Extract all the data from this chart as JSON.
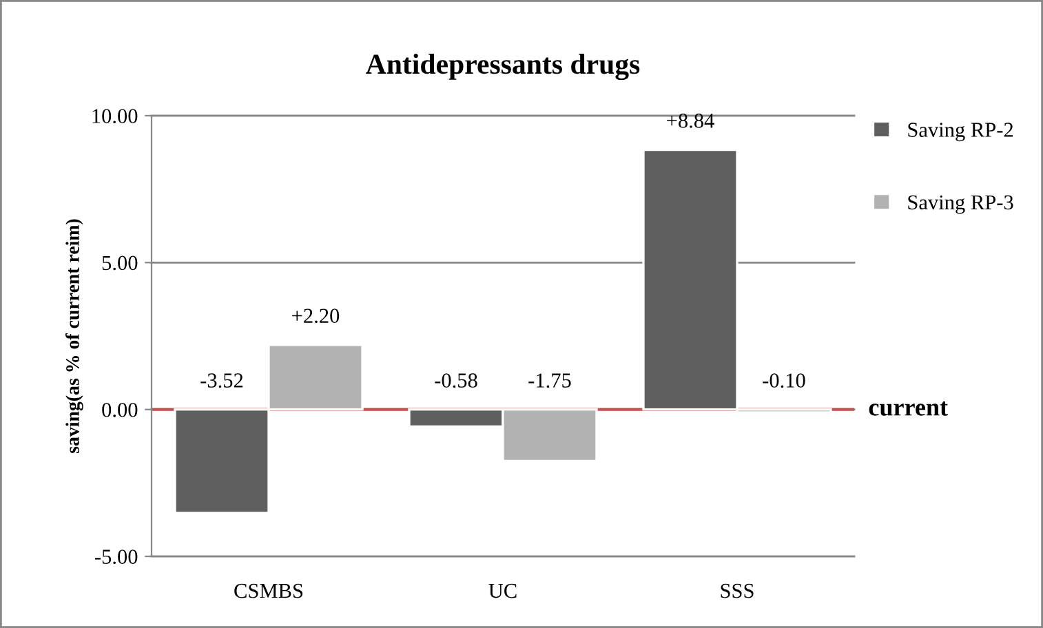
{
  "chart_data": {
    "type": "bar",
    "title": "Antidepressants drugs",
    "ylabel": "saving(as % of current reim)",
    "categories": [
      "CSMBS",
      "UC",
      "SSS"
    ],
    "series": [
      {
        "name": "Saving RP-2",
        "color": "#5f5f5f",
        "values": [
          -3.52,
          -0.58,
          8.84
        ],
        "value_labels": [
          "-3.52",
          "-0.58",
          "+8.84"
        ]
      },
      {
        "name": "Saving RP-3",
        "color": "#b2b2b2",
        "values": [
          2.2,
          -1.75,
          -0.1
        ],
        "value_labels": [
          "+2.20",
          "-1.75",
          "-0.10"
        ]
      }
    ],
    "ylim": [
      -5,
      10
    ],
    "yticks": [
      {
        "value": -5,
        "label": "-5.00"
      },
      {
        "value": 0,
        "label": "0.00"
      },
      {
        "value": 5,
        "label": "5.00"
      },
      {
        "value": 10,
        "label": "10.00"
      }
    ],
    "ref_lines": [
      {
        "axis": "y",
        "value": 0,
        "label": "current",
        "color": "#c0504d"
      }
    ],
    "grid": "y",
    "legend": "top right"
  }
}
